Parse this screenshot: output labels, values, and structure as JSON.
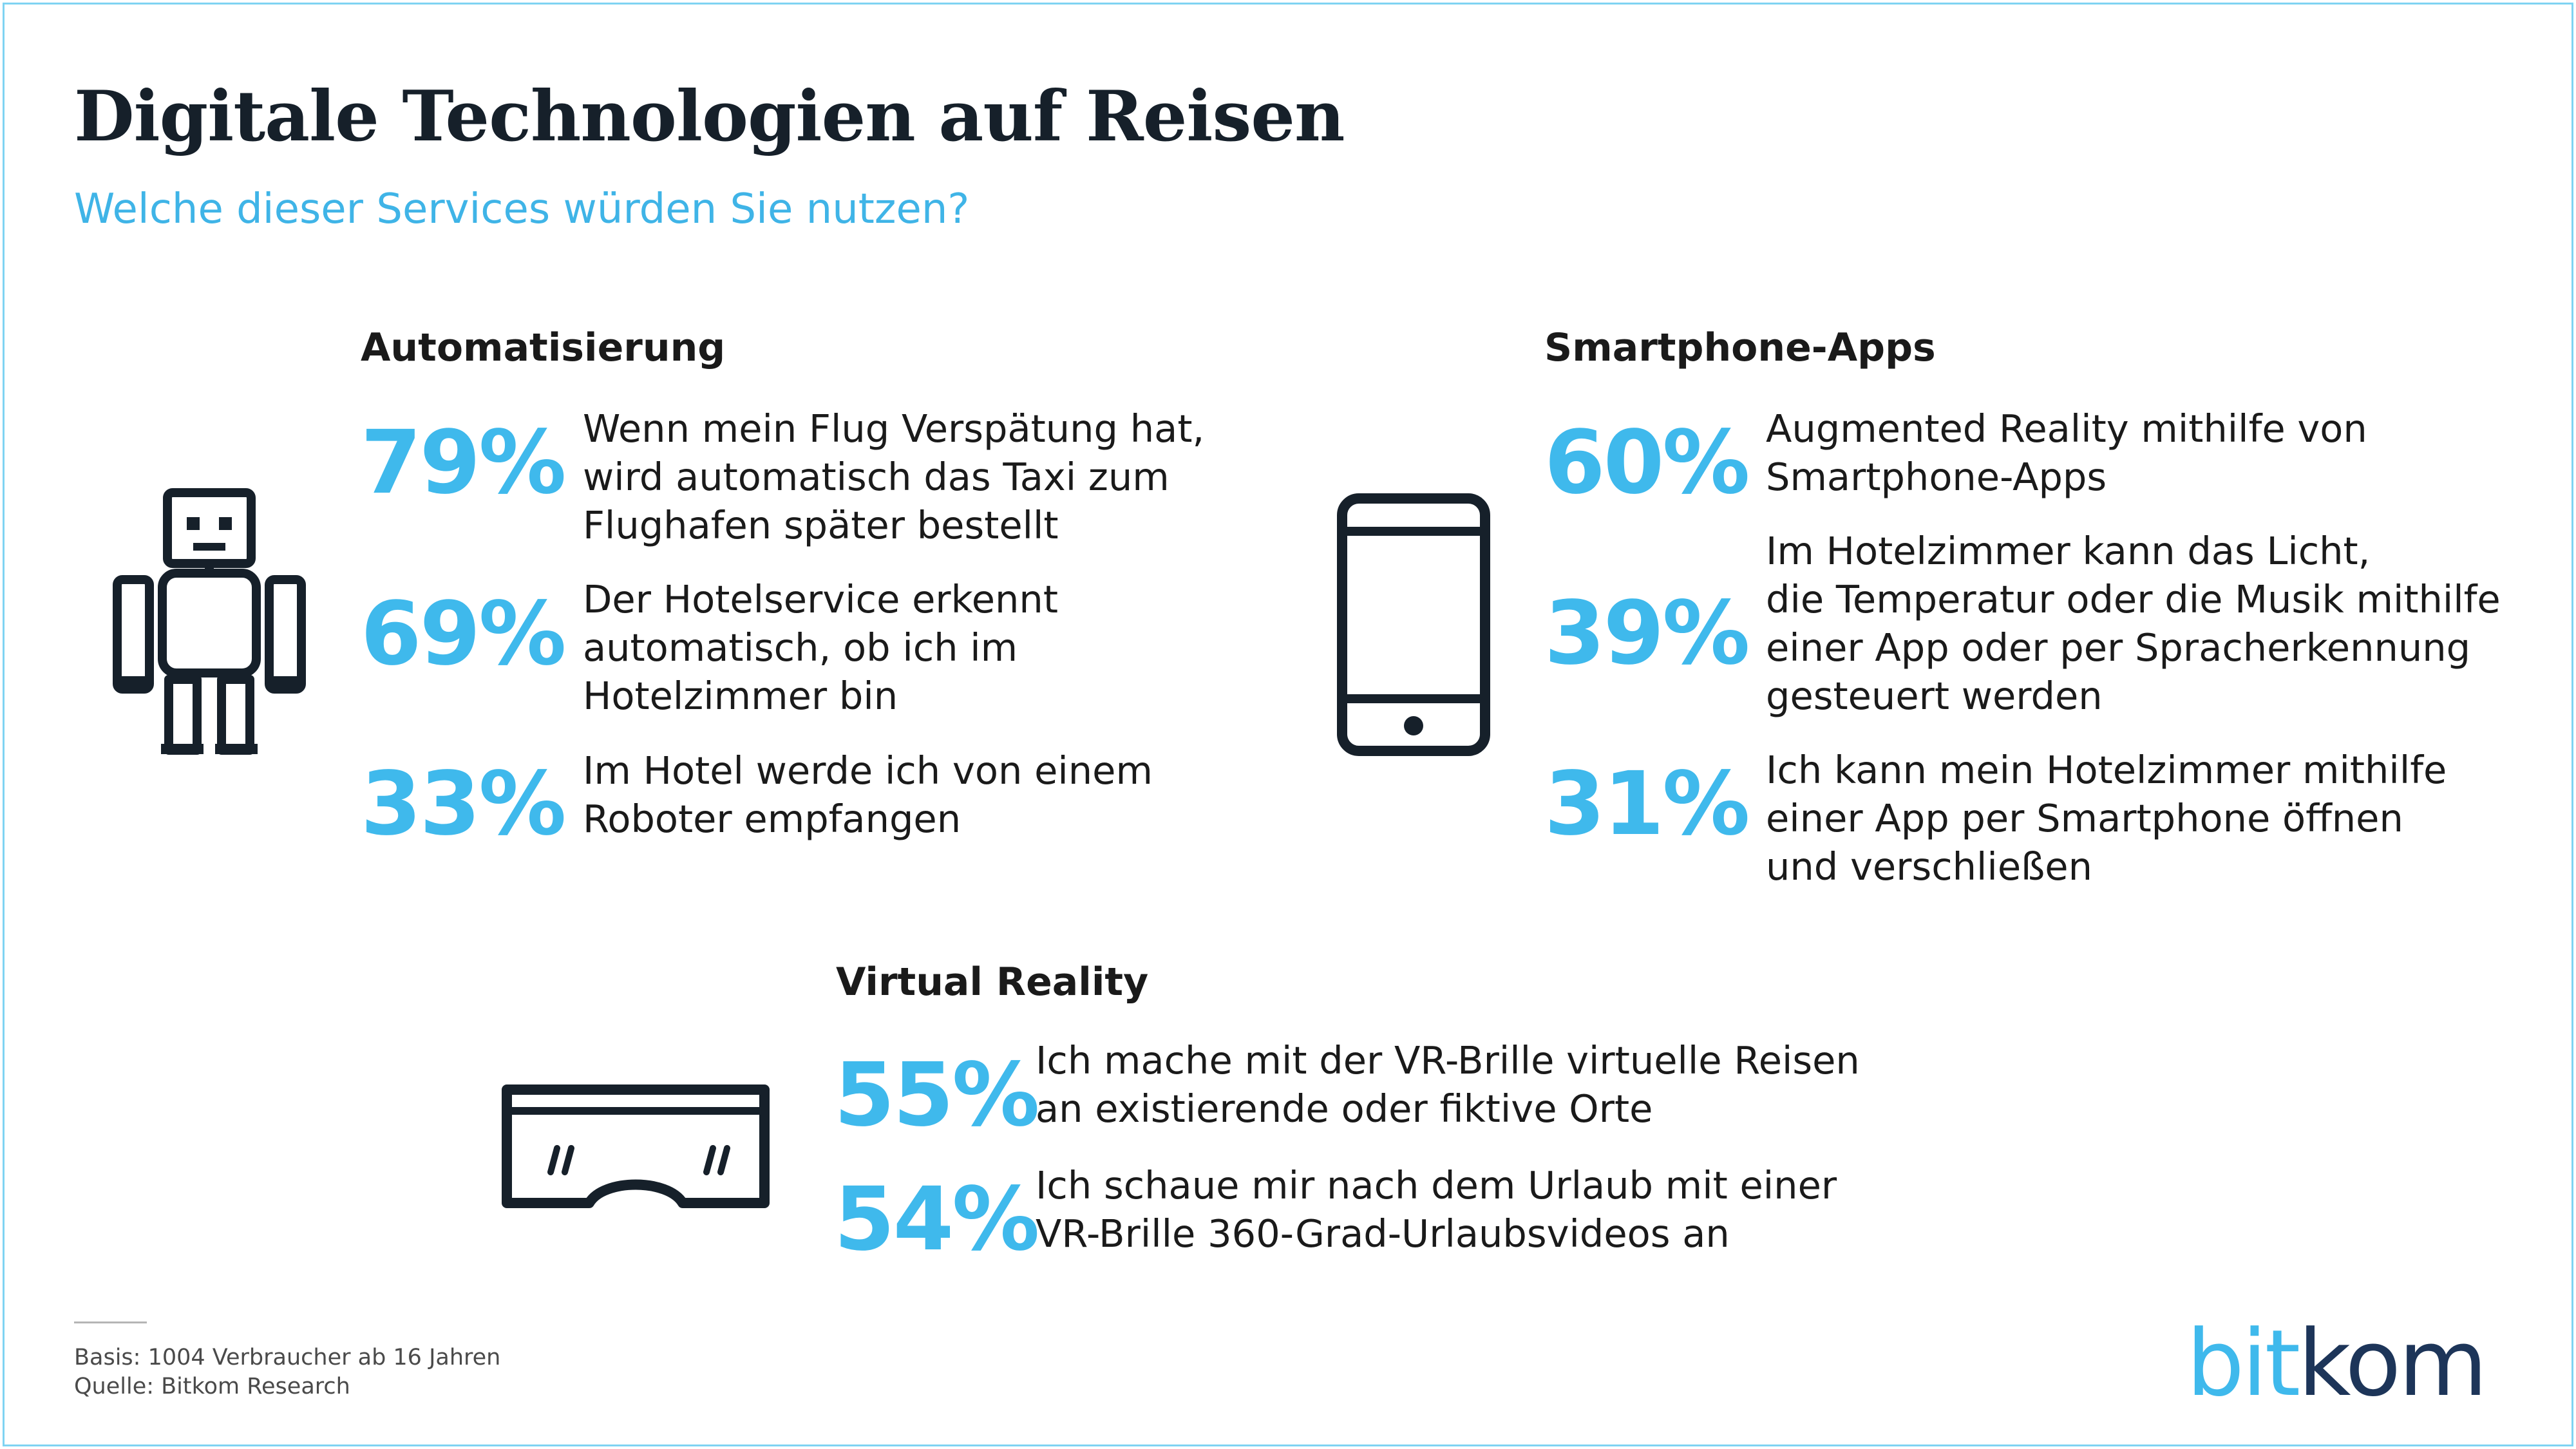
{
  "header": {
    "title": "Digitale Technologien auf Reisen",
    "subtitle": "Welche dieser Services würden Sie nutzen?"
  },
  "chart_data": {
    "type": "table",
    "groups": [
      {
        "name": "Automatisierung",
        "icon": "robot-icon",
        "items": [
          {
            "value": 79,
            "label": "79%",
            "text": "Wenn mein Flug Verspätung hat,\nwird automatisch das Taxi zum\nFlughafen später bestellt"
          },
          {
            "value": 69,
            "label": "69%",
            "text": "Der Hotelservice erkennt\nautomatisch, ob ich im\nHotelzimmer bin"
          },
          {
            "value": 33,
            "label": "33%",
            "text": "Im Hotel werde ich von einem\nRoboter empfangen"
          }
        ]
      },
      {
        "name": "Smartphone-Apps",
        "icon": "smartphone-icon",
        "items": [
          {
            "value": 60,
            "label": "60%",
            "text": "Augmented Reality mithilfe von\nSmartphone-Apps"
          },
          {
            "value": 39,
            "label": "39%",
            "text": "Im Hotelzimmer kann das Licht,\ndie Temperatur oder die Musik mithilfe\neiner App oder per Spracherkennung\ngesteuert werden"
          },
          {
            "value": 31,
            "label": "31%",
            "text": "Ich kann mein Hotelzimmer mithilfe\neiner App per Smartphone öffnen\nund verschließen"
          }
        ]
      },
      {
        "name": "Virtual Reality",
        "icon": "vr-glasses-icon",
        "items": [
          {
            "value": 55,
            "label": "55%",
            "text": "Ich mache mit der VR-Brille virtuelle Reisen\nan existierende oder fiktive Orte"
          },
          {
            "value": 54,
            "label": "54%",
            "text": "Ich schaue mir nach dem Urlaub mit einer\nVR-Brille 360-Grad-Urlaubsvideos an"
          }
        ]
      }
    ]
  },
  "footer": {
    "basis": "Basis: 1004 Verbraucher ab 16 Jahren",
    "source": "Quelle: Bitkom Research",
    "logo_part1": "bit",
    "logo_part2": "kom"
  },
  "colors": {
    "accent": "#3fb9ec",
    "text": "#1a1a1a",
    "logo_dark": "#1d3559"
  }
}
